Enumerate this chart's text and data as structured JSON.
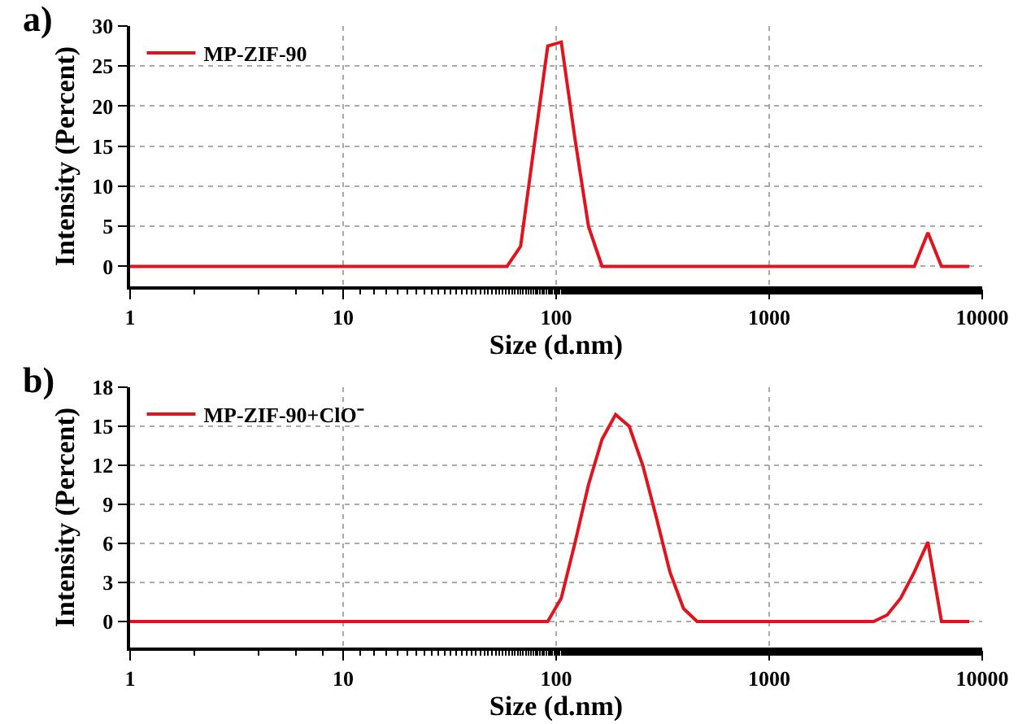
{
  "chart_data": [
    {
      "type": "line",
      "xlabel": "Size (d.nm)",
      "ylabel": "Intensity (Percent)",
      "annotations": [
        "a)"
      ],
      "log": "x",
      "grid": true,
      "legend": "top left",
      "marker": "none",
      "line_style": "solid",
      "xlim": [
        1,
        10000
      ],
      "xticks": [
        1,
        10,
        100,
        1000,
        10000
      ],
      "ylim": [
        -2.5,
        30
      ],
      "yticks": [
        0,
        5,
        10,
        15,
        20,
        25,
        30
      ],
      "series": [
        {
          "name": "MP-ZIF-90",
          "color": "#e0141e",
          "x": [
            1,
            58.8,
            68.1,
            78.8,
            91.3,
            105.7,
            122.4,
            141.8,
            164.2,
            4801,
            5560,
            6439,
            8700
          ],
          "values": [
            0,
            0,
            2.5,
            15,
            27.5,
            28,
            16,
            5,
            0,
            0,
            4.2,
            0,
            0
          ]
        }
      ]
    },
    {
      "type": "line",
      "xlabel": "Size (d.nm)",
      "ylabel": "Intensity (Percent)",
      "annotations": [
        "b)"
      ],
      "log": "x",
      "grid": true,
      "legend": "top left",
      "marker": "none",
      "line_style": "solid",
      "xlim": [
        1,
        10000
      ],
      "xticks": [
        1,
        10,
        100,
        1000,
        10000
      ],
      "ylim": [
        -2,
        18
      ],
      "yticks": [
        0,
        3,
        6,
        9,
        12,
        15,
        18
      ],
      "series": [
        {
          "name": "MP-ZIF-90+ClO⁻",
          "color": "#e0141e",
          "x": [
            1,
            91.3,
            105.7,
            122.4,
            141.8,
            164.2,
            190.1,
            220.2,
            255,
            295.3,
            342,
            396.1,
            458.7,
            3091,
            3580,
            4145,
            4801,
            5560,
            6439,
            8700
          ],
          "values": [
            0,
            0,
            1.8,
            6,
            10.5,
            14,
            15.9,
            15,
            12,
            8,
            3.8,
            1,
            0,
            0,
            0.5,
            1.8,
            3.8,
            6.1,
            0,
            0
          ]
        }
      ]
    }
  ]
}
